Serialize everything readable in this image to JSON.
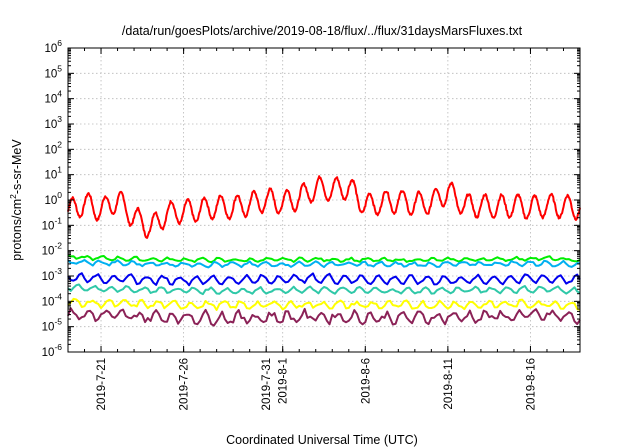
{
  "chart_data": {
    "type": "line",
    "title": "/data/run/goesPlots/archive/2019-08-18/flux/../flux/31daysMarsFluxes.txt",
    "xlabel": "Coordinated Universal Time (UTC)",
    "ylabel_parts": [
      "protons/cm",
      "2",
      "-s-sr-MeV"
    ],
    "y_scale": "log",
    "ylim_exp": [
      -6,
      6
    ],
    "y_tick_labels": [
      {
        "base": "10",
        "exp": "-6"
      },
      {
        "base": "10",
        "exp": "-5"
      },
      {
        "base": "10",
        "exp": "-4"
      },
      {
        "base": "10",
        "exp": "-3"
      },
      {
        "base": "10",
        "exp": "-2"
      },
      {
        "base": "10",
        "exp": "-1"
      },
      {
        "base": "10",
        "exp": "0"
      },
      {
        "base": "10",
        "exp": "1"
      },
      {
        "base": "10",
        "exp": "2"
      },
      {
        "base": "10",
        "exp": "3"
      },
      {
        "base": "10",
        "exp": "4"
      },
      {
        "base": "10",
        "exp": "5"
      },
      {
        "base": "10",
        "exp": "6"
      }
    ],
    "xlim": [
      "2019-07-19",
      "2019-08-19"
    ],
    "x_ticks": [
      "2019-7-21",
      "2019-7-26",
      "2019-7-31",
      "2019-8-1",
      "2019-8-6",
      "2019-8-11",
      "2019-8-16"
    ],
    "grid": true,
    "series": [
      {
        "color": "#ff0000",
        "points": [
          [
            "2019-07-19",
            0.35
          ],
          [
            "2019-07-20",
            0.75
          ],
          [
            "2019-07-21",
            0.4
          ],
          [
            "2019-07-22",
            1.0
          ],
          [
            "2019-07-23",
            0.2
          ],
          [
            "2019-07-24",
            0.08
          ],
          [
            "2019-07-25",
            0.3
          ],
          [
            "2019-07-26",
            0.35
          ],
          [
            "2019-07-27",
            0.4
          ],
          [
            "2019-07-28",
            0.55
          ],
          [
            "2019-07-29",
            0.5
          ],
          [
            "2019-07-30",
            0.7
          ],
          [
            "2019-07-31",
            1.0
          ],
          [
            "2019-08-01",
            0.8
          ],
          [
            "2019-08-02",
            1.2
          ],
          [
            "2019-08-03",
            3.0
          ],
          [
            "2019-08-04",
            2.5
          ],
          [
            "2019-08-05",
            3.2
          ],
          [
            "2019-08-06",
            0.6
          ],
          [
            "2019-08-07",
            0.8
          ],
          [
            "2019-08-08",
            0.9
          ],
          [
            "2019-08-09",
            0.7
          ],
          [
            "2019-08-10",
            0.8
          ],
          [
            "2019-08-11",
            2.2
          ],
          [
            "2019-08-12",
            0.6
          ],
          [
            "2019-08-13",
            0.6
          ],
          [
            "2019-08-14",
            0.55
          ],
          [
            "2019-08-15",
            0.6
          ],
          [
            "2019-08-16",
            0.5
          ],
          [
            "2019-08-17",
            0.6
          ],
          [
            "2019-08-18",
            0.55
          ],
          [
            "2019-08-19",
            0.5
          ]
        ]
      },
      {
        "color": "#00ee00",
        "points": [
          [
            "2019-07-19",
            0.0055
          ],
          [
            "2019-07-24",
            0.0045
          ],
          [
            "2019-07-29",
            0.0042
          ],
          [
            "2019-08-03",
            0.0045
          ],
          [
            "2019-08-08",
            0.0042
          ],
          [
            "2019-08-13",
            0.0045
          ],
          [
            "2019-08-17",
            0.005
          ],
          [
            "2019-08-19",
            0.004
          ]
        ]
      },
      {
        "color": "#00b0f0",
        "points": [
          [
            "2019-07-19",
            0.0035
          ],
          [
            "2019-07-24",
            0.003
          ],
          [
            "2019-07-29",
            0.0028
          ],
          [
            "2019-08-03",
            0.003
          ],
          [
            "2019-08-08",
            0.0028
          ],
          [
            "2019-08-13",
            0.003
          ],
          [
            "2019-08-17",
            0.0032
          ],
          [
            "2019-08-19",
            0.0028
          ]
        ]
      },
      {
        "color": "#0000ee",
        "points": [
          [
            "2019-07-19",
            0.0009
          ],
          [
            "2019-07-24",
            0.0007
          ],
          [
            "2019-07-29",
            0.0007
          ],
          [
            "2019-08-03",
            0.0008
          ],
          [
            "2019-08-08",
            0.0007
          ],
          [
            "2019-08-13",
            0.0007
          ],
          [
            "2019-08-17",
            0.0008
          ],
          [
            "2019-08-19",
            0.0007
          ]
        ]
      },
      {
        "color": "#2fc8a8",
        "points": [
          [
            "2019-07-19",
            0.00035
          ],
          [
            "2019-07-24",
            0.00028
          ],
          [
            "2019-07-29",
            0.00026
          ],
          [
            "2019-08-03",
            0.00028
          ],
          [
            "2019-08-08",
            0.00026
          ],
          [
            "2019-08-13",
            0.00028
          ],
          [
            "2019-08-17",
            0.0003
          ],
          [
            "2019-08-19",
            0.00026
          ]
        ]
      },
      {
        "color": "#ffff00",
        "points": [
          [
            "2019-07-19",
            9e-05
          ],
          [
            "2019-07-24",
            7.5e-05
          ],
          [
            "2019-07-29",
            7e-05
          ],
          [
            "2019-08-03",
            7.5e-05
          ],
          [
            "2019-08-08",
            7e-05
          ],
          [
            "2019-08-13",
            7.5e-05
          ],
          [
            "2019-08-17",
            8e-05
          ],
          [
            "2019-08-19",
            7e-05
          ]
        ]
      },
      {
        "color": "#8b2257",
        "points": [
          [
            "2019-07-19",
            3e-05
          ],
          [
            "2019-07-24",
            2.5e-05
          ],
          [
            "2019-07-29",
            2.2e-05
          ],
          [
            "2019-08-03",
            2.5e-05
          ],
          [
            "2019-08-08",
            2.2e-05
          ],
          [
            "2019-08-13",
            2.5e-05
          ],
          [
            "2019-08-17",
            2.8e-05
          ],
          [
            "2019-08-19",
            2.2e-05
          ]
        ]
      }
    ]
  }
}
